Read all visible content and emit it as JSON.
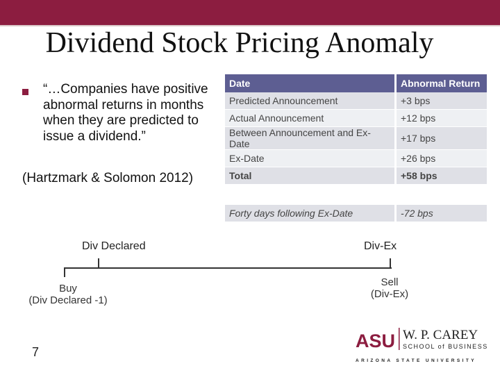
{
  "slide": {
    "title": "Dividend Stock Pricing Anomaly",
    "bullet": "“…Companies have positive abnormal returns in months when they are predicted to issue a dividend.”",
    "citation": "(Hartzmark & Solomon 2012)",
    "page_number": "7"
  },
  "table": {
    "headers": [
      "Date",
      "Abnormal Return"
    ],
    "rows": [
      [
        "Predicted Announcement",
        "+3 bps"
      ],
      [
        "Actual Announcement",
        "+12 bps"
      ],
      [
        "Between Announcement and Ex-Date",
        "+17 bps"
      ],
      [
        "Ex-Date",
        "+26 bps"
      ],
      [
        "Total",
        "+58 bps"
      ],
      [
        "",
        ""
      ],
      [
        "Forty days following Ex-Date",
        "-72 bps"
      ]
    ]
  },
  "timeline": {
    "div_declared": "Div Declared",
    "div_ex": "Div-Ex",
    "buy_line1": "Buy",
    "buy_line2": "(Div Declared -1)",
    "sell_line1": "Sell",
    "sell_line2": "(Div-Ex)"
  },
  "logo": {
    "asu": "ASU",
    "name": "W. P. CAREY",
    "school": "SCHOOL of BUSINESS",
    "university": "ARIZONA STATE UNIVERSITY"
  },
  "colors": {
    "maroon": "#8c1d40",
    "gold": "#c89b30",
    "table_header": "#5d5e92"
  }
}
